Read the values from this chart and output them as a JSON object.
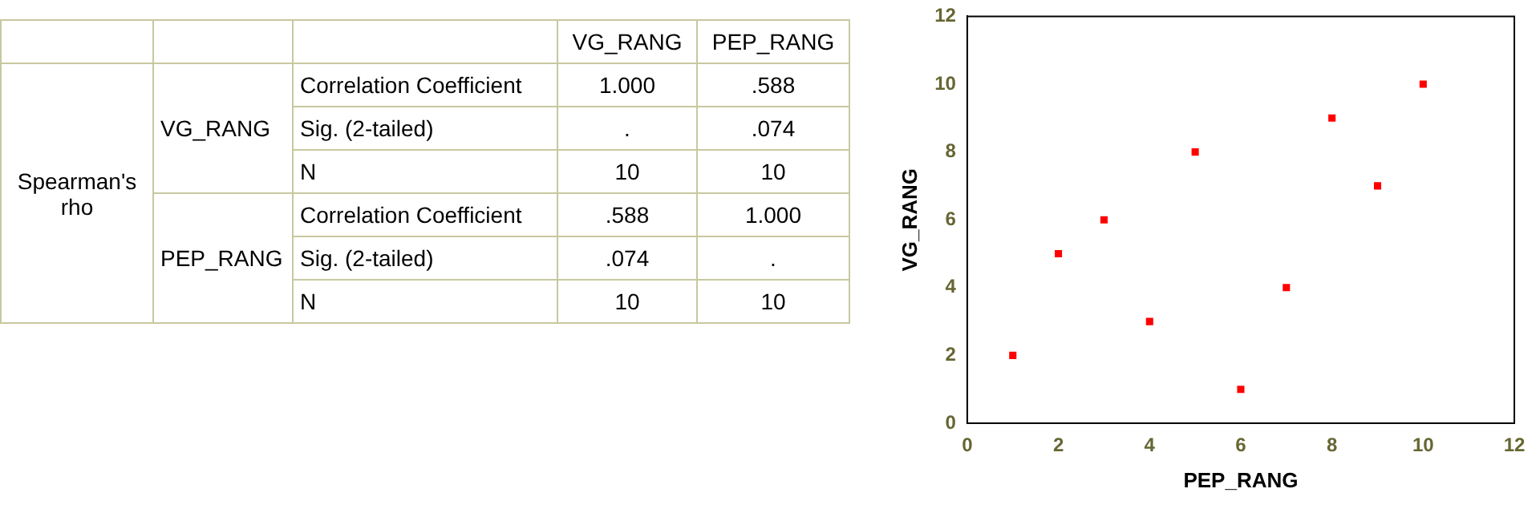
{
  "chart_data": [
    {
      "type": "other",
      "annotations": [
        "VG_RANG",
        "PEP_RANG",
        "Spearman's rho",
        "VG_RANG",
        "Correlation Coefficient",
        "1.000",
        ".588",
        "Sig. (2-tailed)",
        ".",
        ".074",
        "N",
        "10",
        "10",
        "PEP_RANG",
        "Correlation Coefficient",
        ".588",
        "1.000",
        "Sig. (2-tailed)",
        ".074",
        ".",
        "N",
        "10",
        "10"
      ]
    },
    {
      "type": "scatter",
      "xlabel": "PEP_RANG",
      "ylabel": "VG_RANG",
      "x": [
        1,
        2,
        3,
        4,
        5,
        6,
        7,
        8,
        9,
        10
      ],
      "values": [
        2,
        5,
        6,
        3,
        8,
        1,
        4,
        9,
        7,
        10
      ],
      "color": "#ff0000",
      "marker": "square",
      "xlim": [
        0,
        12
      ],
      "xticks": [
        0,
        2,
        4,
        6,
        8,
        10,
        12
      ],
      "ylim": [
        0,
        12
      ],
      "yticks": [
        0,
        2,
        4,
        6,
        8,
        10,
        12
      ],
      "grid": false,
      "legend": false
    }
  ]
}
